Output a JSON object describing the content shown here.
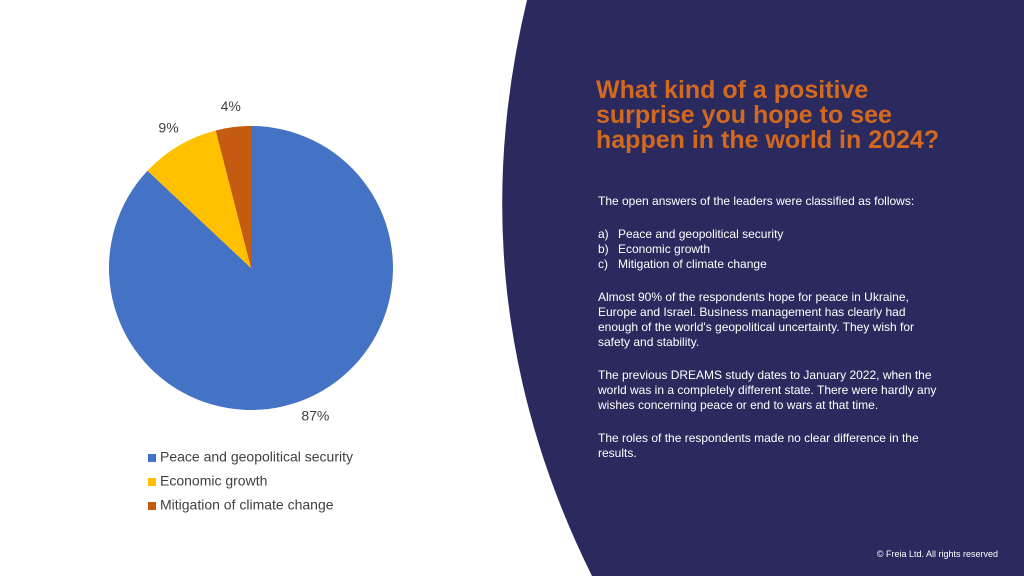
{
  "chart_data": {
    "type": "pie",
    "categories": [
      "Peace and geopolitical security",
      "Economic growth",
      "Mitigation of climate change"
    ],
    "values": [
      87,
      9,
      4
    ],
    "value_labels": [
      "87%",
      "9%",
      "4%"
    ],
    "colors": [
      "#4472c4",
      "#ffc000",
      "#c55a11"
    ]
  },
  "title_lines": [
    "What kind of a positive",
    "surprise you hope to see",
    "happen in the world in 2024?"
  ],
  "intro": "The open answers of the leaders were classified as follows:",
  "list": [
    {
      "marker": "a)",
      "text": "Peace and geopolitical security"
    },
    {
      "marker": "b)",
      "text": "Economic growth"
    },
    {
      "marker": "c)",
      "text": "Mitigation of climate change"
    }
  ],
  "paragraphs": [
    "Almost 90% of the respondents hope for peace in Ukraine, Europe and Israel. Business management has clearly had enough of the world's geopolitical uncertainty. They wish for safety and stability.",
    "The previous DREAMS study dates to January 2022, when the world was in a completely different state. There were hardly any wishes concerning peace or end to wars at that time.",
    "The roles of the respondents made no clear difference in the results."
  ],
  "footer": "© Freia Ltd. All rights reserved"
}
